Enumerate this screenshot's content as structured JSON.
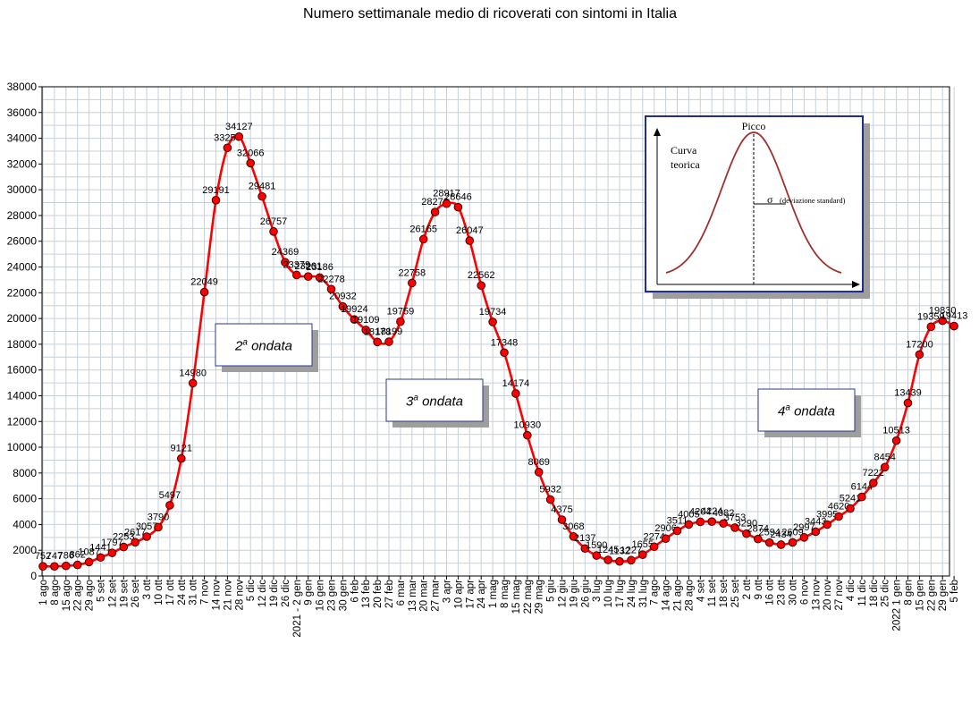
{
  "chart_data": {
    "type": "line",
    "title": "Numero settimanale medio di ricoverati con sintomi in Italia",
    "xlabel": "",
    "ylabel": "",
    "ylim": [
      0,
      38000
    ],
    "y_ticks": [
      "0",
      "2000",
      "4000",
      "6000",
      "8000",
      "10000",
      "12000",
      "14000",
      "16000",
      "18000",
      "20000",
      "22000",
      "24000",
      "26000",
      "28000",
      "30000",
      "32000",
      "34000",
      "36000",
      "38000"
    ],
    "grid": true,
    "line_color": "#ff0000",
    "marker_color": "#ff0000",
    "categories": [
      "1 ago",
      "8 ago",
      "15 ago",
      "22 ago",
      "29 ago",
      "5 set",
      "12 set",
      "19 set",
      "26 set",
      "3 ott",
      "10 ott",
      "17 ott",
      "24 ott",
      "31 ott",
      "7 nov",
      "14 nov",
      "21 nov",
      "28 nov",
      "5 dic",
      "12 dic",
      "19 dic",
      "26 dic",
      "2021 - 2 gen",
      "9 gen",
      "16 gen",
      "23 gen",
      "30 gen",
      "6 feb",
      "13 feb",
      "20 feb",
      "27 feb",
      "6 mar",
      "13 mar",
      "20 mar",
      "27 mar",
      "3 apr",
      "10 apr",
      "17 apr",
      "24 apr",
      "1 mag",
      "8 mag",
      "15 mag",
      "22 mag",
      "29 mag",
      "5 giu",
      "12 giu",
      "19 giu",
      "26 giu",
      "3 lug",
      "10 lug",
      "17 lug",
      "24 lug",
      "31 lug",
      "7 ago",
      "14 ago",
      "21 ago",
      "28 ago",
      "4 set",
      "11 set",
      "18 set",
      "25 set",
      "2 ott",
      "9 ott",
      "16 ott",
      "23 ott",
      "30 ott",
      "6 nov",
      "13 nov",
      "20 nov",
      "27 nov",
      "4 dic",
      "11 dic",
      "18 dic",
      "25 dic",
      "2022 1 gen",
      "8 gen",
      "15 gen",
      "22 gen",
      "29 gen",
      "5 feb"
    ],
    "series": [
      {
        "values": [
          752,
          747,
          786,
          862,
          1087,
          1441,
          1797,
          2253,
          2617,
          3057,
          3790,
          5497,
          9121,
          14980,
          22049,
          29191,
          33256,
          34127,
          32066,
          29481,
          26757,
          24369,
          23379,
          23261,
          23186,
          22278,
          20932,
          19924,
          19109,
          18178,
          18199,
          19759,
          22758,
          26165,
          28270,
          28917,
          28646,
          26047,
          22562,
          19734,
          17348,
          14174,
          10930,
          8069,
          5932,
          4375,
          3068,
          2137,
          1590,
          1245,
          1132,
          1227,
          1655,
          2274,
          2906,
          3511,
          4005,
          4204,
          4224,
          4082,
          3753,
          3290,
          2874,
          2594,
          2434,
          2609,
          2997,
          3443,
          3995,
          4620,
          5241,
          6144,
          7222,
          8454,
          10513,
          13439,
          17200,
          19359,
          19830,
          19413
        ],
        "labels": [
          "752",
          "747",
          "786",
          "862",
          "1087",
          "1441",
          "1797",
          "2253",
          "2617",
          "3057",
          "3790",
          "5497",
          "9121",
          "14980",
          "22049",
          "29191",
          "33256",
          "34127",
          "32066",
          "29481",
          "26757",
          "24369",
          "23379",
          "23261",
          "23186",
          "22278",
          "20932",
          "19924",
          "19109",
          "18178",
          "18199",
          "19759",
          "22758",
          "26165",
          "28270",
          "28917",
          "28646",
          "26047",
          "22562",
          "19734",
          "17348",
          "14174",
          "10930",
          "8069",
          "5932",
          "4375",
          "3068",
          "2137",
          "1590",
          "1245",
          "1132",
          "1227",
          "1655",
          "2274",
          "2906",
          "3511",
          "4005",
          "4204",
          "4224",
          "4082",
          "3753",
          "3290",
          "2874",
          "2594",
          "2434",
          "2609",
          "2997",
          "3443",
          "3995",
          "4620",
          "5241",
          "6144",
          "7222",
          "8454",
          "10513",
          "13439",
          "17200",
          "19359",
          "19830",
          "19413"
        ]
      }
    ],
    "annotations": [
      {
        "text_base": "2",
        "text_sup": "a",
        "text_rest": " ondata"
      },
      {
        "text_base": "3",
        "text_sup": "a",
        "text_rest": " ondata"
      },
      {
        "text_base": "4",
        "text_sup": "a",
        "text_rest": " ondata"
      }
    ],
    "inset": {
      "peak_label": "Picco",
      "curve_label_1": "Curva",
      "curve_label_2": "teorica",
      "sigma": "σ",
      "sigma_note": "(deviazione standard)",
      "curve_color": "#a03030",
      "border_color": "#1f2f8f"
    }
  }
}
